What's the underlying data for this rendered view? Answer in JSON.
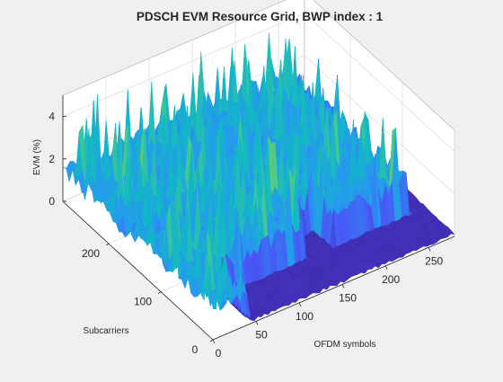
{
  "figure": {
    "background": "#f0f0f0",
    "axes_background": "#ffffff",
    "grid_color": "#dedede"
  },
  "chart_data": {
    "type": "surface",
    "title": "PDSCH EVM Resource Grid, BWP index : 1",
    "xlabel": "OFDM symbols",
    "ylabel": "Subcarriers",
    "zlabel": "EVM (%)",
    "xlim": [
      0,
      280
    ],
    "ylim": [
      0,
      288
    ],
    "zlim": [
      0,
      5
    ],
    "xticks": [
      0,
      50,
      100,
      150,
      200,
      250
    ],
    "yticks": [
      0,
      100,
      200
    ],
    "zticks": [
      0,
      2,
      4
    ],
    "grid": true,
    "colormap": "parula",
    "colormap_colors": [
      "#3e26a8",
      "#4856f5",
      "#2797f1",
      "#12b8c6",
      "#4bca8a",
      "#b9c231",
      "#fdd924",
      "#f9fb0e"
    ],
    "surface_summary": {
      "typical_evm_percent": 1.8,
      "peak_evm_percent": 4.5,
      "symbols": 280,
      "subcarriers": 288
    }
  }
}
